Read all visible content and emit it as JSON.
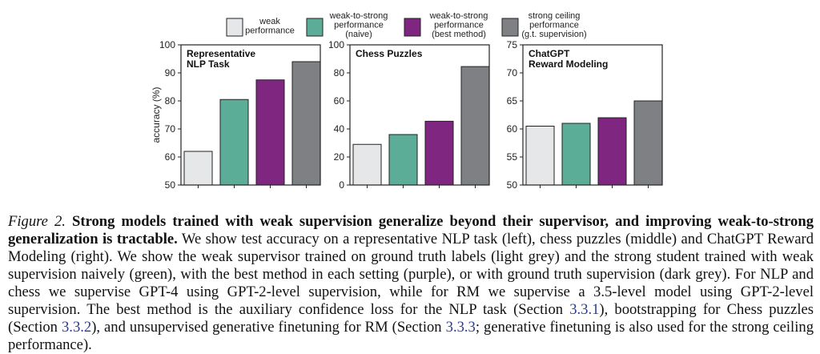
{
  "colors": {
    "weak": "#e6e7e9",
    "naive": "#5cad98",
    "best": "#7f2680",
    "ceiling": "#7f8083"
  },
  "legend": [
    {
      "key": "weak",
      "label": "weak\nperformance"
    },
    {
      "key": "naive",
      "label": "weak-to-strong\nperformance\n(naive)"
    },
    {
      "key": "best",
      "label": "weak-to-strong\nperformance\n(best method)"
    },
    {
      "key": "ceiling",
      "label": "strong ceiling\nperformance\n(g.t. supervision)"
    }
  ],
  "chart_data": [
    {
      "type": "bar",
      "title": "Representative\nNLP Task",
      "ylabel": "accuracy (%)",
      "ylim": [
        50,
        100
      ],
      "yticks": [
        50,
        60,
        70,
        80,
        90,
        100
      ],
      "series": [
        {
          "name": "weak performance",
          "key": "weak",
          "value": 62
        },
        {
          "name": "weak-to-strong performance (naive)",
          "key": "naive",
          "value": 80.5
        },
        {
          "name": "weak-to-strong performance (best method)",
          "key": "best",
          "value": 87.5
        },
        {
          "name": "strong ceiling performance (g.t. supervision)",
          "key": "ceiling",
          "value": 94
        }
      ]
    },
    {
      "type": "bar",
      "title": "Chess Puzzles",
      "ylabel": "",
      "ylim": [
        0,
        100
      ],
      "yticks": [
        0,
        20,
        40,
        60,
        80,
        100
      ],
      "series": [
        {
          "name": "weak performance",
          "key": "weak",
          "value": 29
        },
        {
          "name": "weak-to-strong performance (naive)",
          "key": "naive",
          "value": 36
        },
        {
          "name": "weak-to-strong performance (best method)",
          "key": "best",
          "value": 45.5
        },
        {
          "name": "strong ceiling performance (g.t. supervision)",
          "key": "ceiling",
          "value": 84.5
        }
      ]
    },
    {
      "type": "bar",
      "title": "ChatGPT\nReward Modeling",
      "ylabel": "",
      "ylim": [
        50,
        75
      ],
      "yticks": [
        50,
        55,
        60,
        65,
        70,
        75
      ],
      "series": [
        {
          "name": "weak performance",
          "key": "weak",
          "value": 60.5
        },
        {
          "name": "weak-to-strong performance (naive)",
          "key": "naive",
          "value": 61
        },
        {
          "name": "weak-to-strong performance (best method)",
          "key": "best",
          "value": 62
        },
        {
          "name": "strong ceiling performance (g.t. supervision)",
          "key": "ceiling",
          "value": 65
        }
      ]
    }
  ],
  "caption": {
    "label": "Figure 2.",
    "title": "Strong models trained with weak supervision generalize beyond their supervisor, and improving weak-to-strong generalization is tractable.",
    "body_1": "We show test accuracy on a representative NLP task (left), chess puzzles (middle) and ChatGPT Reward Modeling (right). We show the weak supervisor trained on ground truth labels (light grey) and the strong student trained with weak supervision naively (green), with the best method in each setting (purple), or with ground truth supervision (dark grey).  For NLP and chess we supervise GPT-4 using GPT-2-level supervision, while for RM we supervise a 3.5-level model using GPT-2-level supervision. The best method is the auxiliary confidence loss for the NLP task (Section",
    "ref_1": "3.3.1",
    "body_2": "), bootstrapping for Chess puzzles (Section",
    "ref_2": "3.3.2",
    "body_3": "), and unsupervised generative finetuning for RM (Section",
    "ref_3": "3.3.3",
    "body_4": "; generative finetuning is also used for the strong ceiling performance)."
  }
}
